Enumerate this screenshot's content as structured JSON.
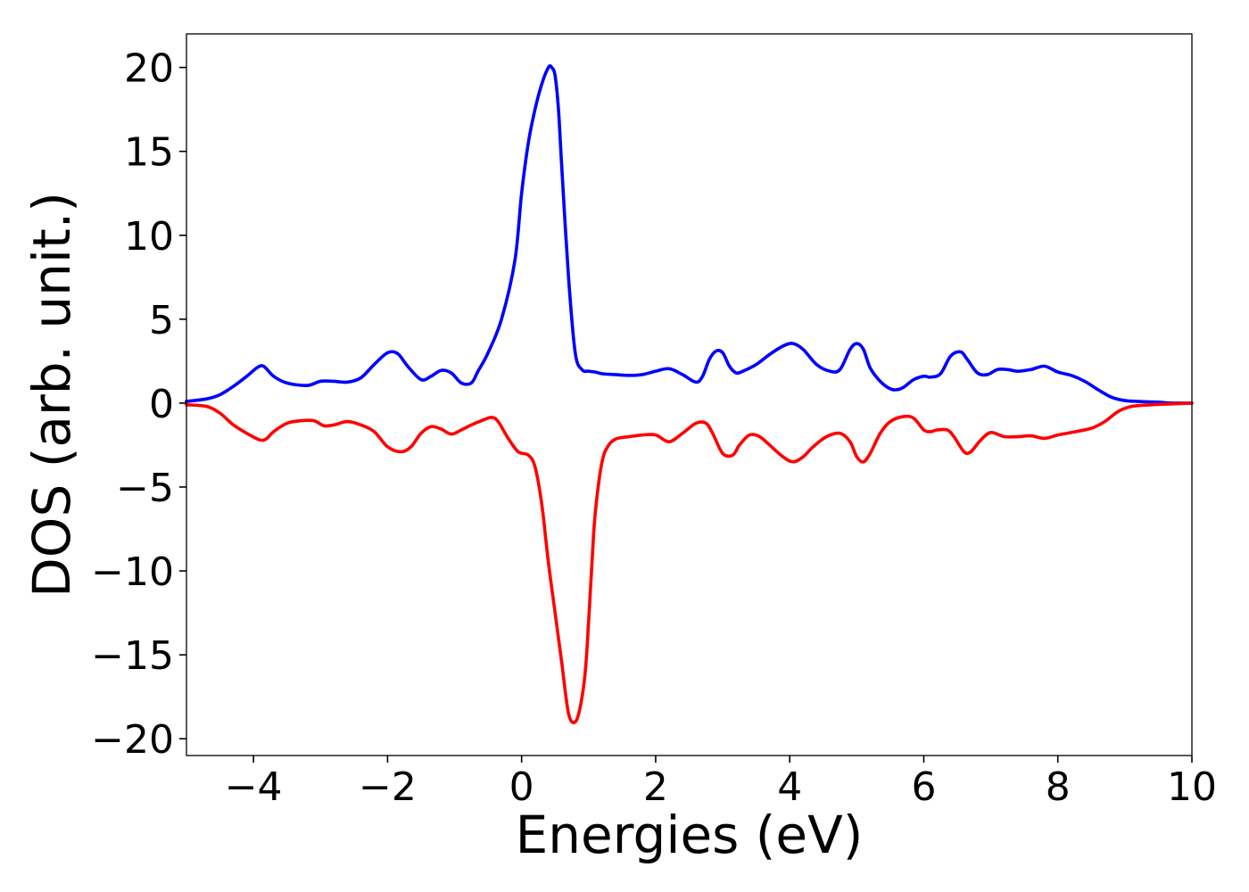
{
  "chart_data": {
    "type": "line",
    "title": "",
    "xlabel": "Energies (eV)",
    "ylabel": "DOS (arb. unit.)",
    "xlim": [
      -5,
      10
    ],
    "ylim": [
      -21,
      22
    ],
    "grid": false,
    "legend": "none",
    "x_ticks": [
      -4,
      -2,
      0,
      2,
      4,
      6,
      8,
      10
    ],
    "x_tick_labels": [
      "−4",
      "−2",
      "0",
      "2",
      "4",
      "6",
      "8",
      "10"
    ],
    "y_ticks": [
      -20,
      -15,
      -10,
      -5,
      0,
      5,
      10,
      15,
      20
    ],
    "y_tick_labels": [
      "−20",
      "−15",
      "−10",
      "−5",
      "0",
      "5",
      "10",
      "15",
      "20"
    ],
    "series": [
      {
        "color": "#0000ff",
        "x": [
          -5.0,
          -4.7,
          -4.5,
          -4.3,
          -4.1,
          -3.95,
          -3.85,
          -3.7,
          -3.5,
          -3.2,
          -3.0,
          -2.8,
          -2.6,
          -2.4,
          -2.2,
          -2.0,
          -1.85,
          -1.7,
          -1.5,
          -1.35,
          -1.2,
          -1.05,
          -0.9,
          -0.75,
          -0.65,
          -0.5,
          -0.3,
          -0.1,
          0.0,
          0.1,
          0.2,
          0.3,
          0.4,
          0.45,
          0.5,
          0.55,
          0.6,
          0.7,
          0.8,
          0.9,
          1.0,
          1.1,
          1.2,
          1.4,
          1.6,
          1.8,
          2.0,
          2.2,
          2.4,
          2.6,
          2.7,
          2.8,
          2.9,
          3.0,
          3.1,
          3.2,
          3.3,
          3.5,
          3.7,
          3.9,
          4.05,
          4.2,
          4.4,
          4.6,
          4.75,
          4.9,
          5.0,
          5.1,
          5.2,
          5.35,
          5.5,
          5.6,
          5.7,
          5.85,
          6.0,
          6.1,
          6.25,
          6.4,
          6.55,
          6.65,
          6.8,
          6.95,
          7.1,
          7.25,
          7.4,
          7.6,
          7.8,
          8.0,
          8.2,
          8.4,
          8.6,
          8.8,
          9.0,
          9.2,
          9.5,
          9.7,
          10.0
        ],
        "values": [
          0.1,
          0.25,
          0.5,
          1.0,
          1.6,
          2.1,
          2.2,
          1.6,
          1.2,
          1.05,
          1.3,
          1.3,
          1.25,
          1.5,
          2.3,
          3.0,
          2.95,
          2.2,
          1.4,
          1.6,
          1.95,
          1.8,
          1.2,
          1.2,
          1.9,
          3.0,
          5.0,
          8.5,
          12.5,
          15.5,
          17.5,
          19.0,
          20.0,
          20.0,
          19.5,
          17.5,
          14.0,
          7.5,
          3.0,
          2.0,
          1.9,
          1.85,
          1.75,
          1.7,
          1.65,
          1.7,
          1.9,
          2.05,
          1.7,
          1.25,
          1.6,
          2.6,
          3.1,
          3.0,
          2.2,
          1.8,
          1.9,
          2.3,
          2.9,
          3.4,
          3.55,
          3.2,
          2.3,
          1.9,
          2.0,
          3.2,
          3.55,
          3.2,
          2.1,
          1.3,
          0.85,
          0.8,
          0.95,
          1.4,
          1.6,
          1.55,
          1.75,
          2.8,
          3.05,
          2.6,
          1.8,
          1.7,
          2.0,
          2.0,
          1.9,
          2.0,
          2.2,
          1.85,
          1.65,
          1.3,
          0.8,
          0.35,
          0.15,
          0.1,
          0.05,
          0.0,
          0.0
        ]
      },
      {
        "color": "#ff0000",
        "x": [
          -5.0,
          -4.7,
          -4.5,
          -4.3,
          -4.1,
          -3.9,
          -3.8,
          -3.7,
          -3.5,
          -3.3,
          -3.1,
          -2.95,
          -2.8,
          -2.6,
          -2.4,
          -2.2,
          -2.0,
          -1.8,
          -1.65,
          -1.5,
          -1.35,
          -1.2,
          -1.05,
          -0.9,
          -0.75,
          -0.6,
          -0.45,
          -0.35,
          -0.2,
          -0.05,
          0.1,
          0.2,
          0.3,
          0.4,
          0.5,
          0.6,
          0.7,
          0.8,
          0.88,
          0.95,
          1.0,
          1.05,
          1.1,
          1.2,
          1.3,
          1.4,
          1.5,
          1.6,
          1.8,
          2.0,
          2.2,
          2.4,
          2.6,
          2.75,
          2.85,
          3.0,
          3.15,
          3.25,
          3.4,
          3.55,
          3.7,
          3.9,
          4.05,
          4.2,
          4.35,
          4.55,
          4.75,
          4.9,
          5.0,
          5.1,
          5.2,
          5.35,
          5.5,
          5.7,
          5.85,
          6.0,
          6.1,
          6.2,
          6.35,
          6.45,
          6.6,
          6.7,
          6.85,
          7.0,
          7.2,
          7.4,
          7.6,
          7.8,
          8.0,
          8.2,
          8.5,
          8.7,
          8.9,
          9.1,
          9.4,
          9.7,
          10.0
        ],
        "values": [
          -0.1,
          -0.2,
          -0.6,
          -1.3,
          -1.8,
          -2.2,
          -2.1,
          -1.7,
          -1.2,
          -1.05,
          -1.05,
          -1.35,
          -1.3,
          -1.1,
          -1.3,
          -1.7,
          -2.6,
          -2.9,
          -2.6,
          -1.8,
          -1.4,
          -1.55,
          -1.85,
          -1.6,
          -1.3,
          -1.05,
          -0.85,
          -1.1,
          -2.1,
          -2.9,
          -3.1,
          -3.8,
          -6.0,
          -9.5,
          -12.5,
          -15.5,
          -18.5,
          -19.0,
          -18.0,
          -16.0,
          -13.0,
          -9.5,
          -6.5,
          -3.5,
          -2.5,
          -2.15,
          -2.05,
          -2.0,
          -1.9,
          -1.9,
          -2.3,
          -1.8,
          -1.2,
          -1.2,
          -1.8,
          -3.0,
          -3.1,
          -2.5,
          -1.9,
          -2.0,
          -2.5,
          -3.2,
          -3.5,
          -3.2,
          -2.6,
          -2.0,
          -1.8,
          -2.3,
          -3.2,
          -3.5,
          -3.0,
          -1.8,
          -1.1,
          -0.8,
          -0.9,
          -1.6,
          -1.7,
          -1.6,
          -1.6,
          -2.0,
          -2.9,
          -2.9,
          -2.2,
          -1.75,
          -2.0,
          -2.0,
          -1.95,
          -2.1,
          -1.9,
          -1.75,
          -1.5,
          -1.1,
          -0.5,
          -0.2,
          -0.1,
          -0.05,
          0.0
        ]
      }
    ]
  }
}
